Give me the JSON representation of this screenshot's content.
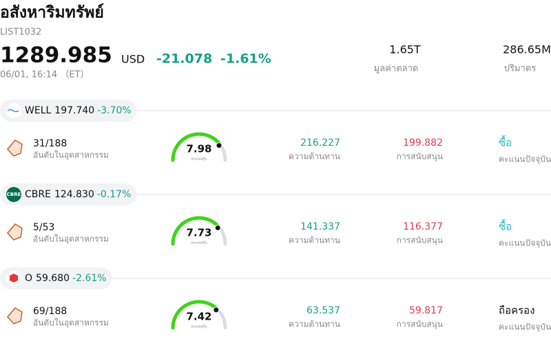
{
  "header": {
    "title": "อสังหาริมทรัพย์",
    "code": "LIST1032",
    "price": "1289.985",
    "currency": "USD",
    "change": "-21.078",
    "change_pct": "-1.61%",
    "time": "06/01, 16:14 （ET）",
    "stats": [
      {
        "value": "1.65T",
        "label": "มูลค่าตลาด"
      },
      {
        "value": "286.65M",
        "label": "ปริมาตร"
      }
    ]
  },
  "gauge_range": [
    0,
    10
  ],
  "stocks": [
    {
      "ticker": "WELL",
      "price": "197.740",
      "change_pct": "-3.70%",
      "rank": "31/188",
      "rank_label": "อันดับในอุตสาหกรรม",
      "score": 7.98,
      "score_label": "คะแนนหุ้น",
      "resistance": "216.227",
      "resistance_label": "ความต้านทาน",
      "support": "199.882",
      "support_label": "การสนับสนุน",
      "rating": "ซื้อ",
      "rating_label": "คะแนนปัจจุบัน",
      "rating_color": "#2bb5b8"
    },
    {
      "ticker": "CBRE",
      "logo_text": "CBRE",
      "price": "124.830",
      "change_pct": "-0.17%",
      "rank": "5/53",
      "rank_label": "อันดับในอุตสาหกรรม",
      "score": 7.73,
      "score_label": "คะแนนหุ้น",
      "resistance": "141.337",
      "resistance_label": "ความต้านทาน",
      "support": "116.377",
      "support_label": "การสนับสนุน",
      "rating": "ซื้อ",
      "rating_label": "คะแนนปัจจุบัน",
      "rating_color": "#2bb5b8"
    },
    {
      "ticker": "O",
      "price": "59.680",
      "change_pct": "-2.61%",
      "rank": "69/188",
      "rank_label": "อันดับในอุตสาหกรรม",
      "score": 7.42,
      "score_label": "คะแนนหุ้น",
      "resistance": "63.537",
      "resistance_label": "ความต้านทาน",
      "support": "59.817",
      "support_label": "การสนับสนุน",
      "rating": "ถือครอง",
      "rating_label": "คะแนนปัจจุบัน",
      "rating_color": "#111111"
    }
  ]
}
